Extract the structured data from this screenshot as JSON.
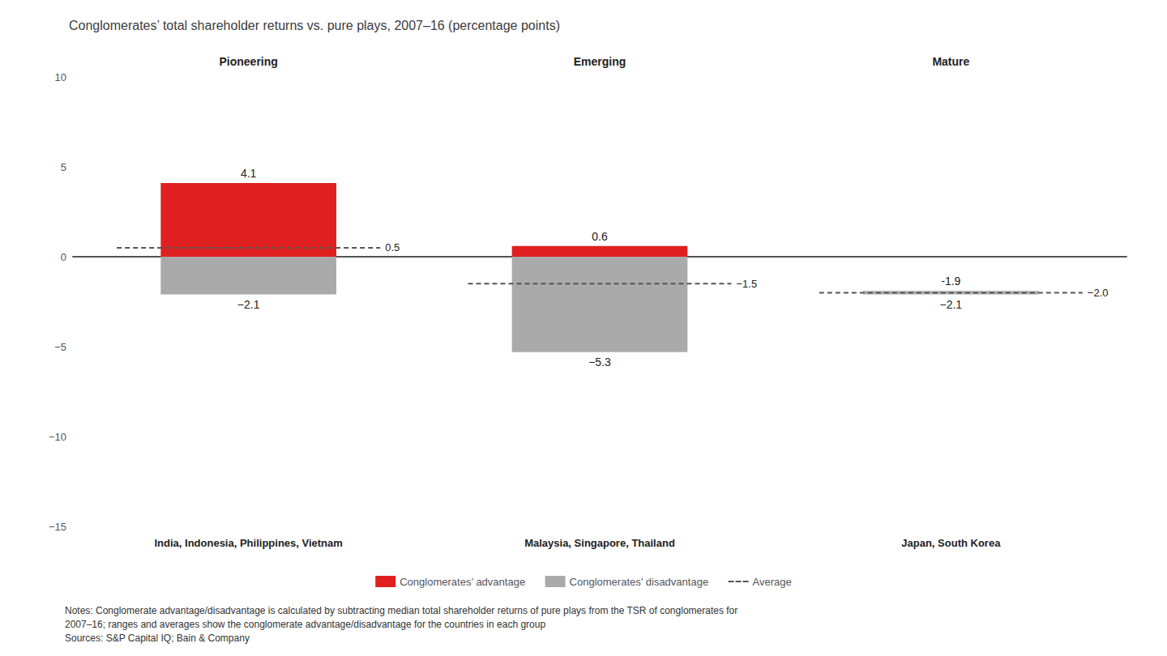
{
  "chart_data": {
    "type": "bar",
    "title": "Conglomerates’ total shareholder returns vs. pure plays, 2007–16 (percentage points)",
    "categories": [
      "Pioneering",
      "Emerging",
      "Mature"
    ],
    "countries": [
      "India, Indonesia, Philippines, Vietnam",
      "Malaysia, Singapore, Thailand",
      "Japan, South Korea"
    ],
    "series": [
      {
        "name": "Conglomerates’ advantage",
        "color": "#e02020",
        "values": [
          4.1,
          0.6,
          -1.9
        ]
      },
      {
        "name": "Conglomerates’ disadvantage",
        "color": "#aaaaaa",
        "values": [
          -2.1,
          -5.3,
          -2.1
        ],
        "value_labels": [
          "−2.1",
          "−5.3",
          "−2.1"
        ]
      },
      {
        "name": "Average",
        "type": "line",
        "line_style": "dashed",
        "color": "#555555",
        "values": [
          0.5,
          -1.5,
          -2.0
        ],
        "value_labels": [
          "0.5",
          "−1.5",
          "−2.0"
        ]
      }
    ],
    "ylim": [
      -15,
      10
    ],
    "yticks": [
      {
        "value": -15,
        "label": "−15"
      },
      {
        "value": -10,
        "label": "−10"
      },
      {
        "value": -5,
        "label": "−5"
      },
      0,
      5,
      10
    ],
    "grid": false,
    "data_labels": true,
    "legend": "bottom",
    "notes": [
      "Notes: Conglomerate advantage/disadvantage is calculated by subtracting median total shareholder returns of pure plays from the TSR of conglomerates for",
      "2007–16; ranges and averages show the conglomerate advantage/disadvantage for the countries in each group",
      "Sources: S&P Capital IQ; Bain & Company"
    ]
  }
}
